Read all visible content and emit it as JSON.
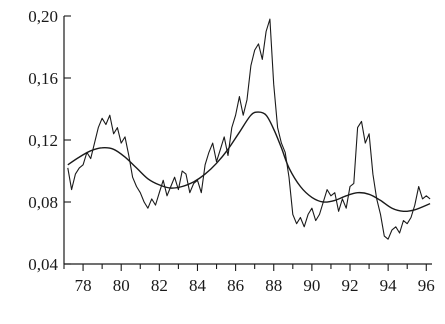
{
  "chart_data": {
    "type": "line",
    "title": "",
    "xlabel": "",
    "ylabel": "",
    "xlim": [
      1977.0,
      1996.3
    ],
    "ylim": [
      0.04,
      0.2
    ],
    "x_ticks": [
      78,
      80,
      82,
      84,
      86,
      88,
      90,
      92,
      94,
      96
    ],
    "x_tick_labels": [
      "78",
      "80",
      "82",
      "84",
      "86",
      "88",
      "90",
      "92",
      "94",
      "96"
    ],
    "y_ticks": [
      0.04,
      0.08,
      0.12,
      0.16,
      0.2
    ],
    "y_tick_labels": [
      "0,04",
      "0,08",
      "0,12",
      "0,16",
      "0,20"
    ],
    "grid": false,
    "legend": "none",
    "series": [
      {
        "style": "raw",
        "x": [
          1977.2,
          1977.4,
          1977.6,
          1977.8,
          1978.0,
          1978.2,
          1978.4,
          1978.6,
          1978.8,
          1979.0,
          1979.2,
          1979.4,
          1979.6,
          1979.8,
          1980.0,
          1980.2,
          1980.4,
          1980.6,
          1980.8,
          1981.0,
          1981.2,
          1981.4,
          1981.6,
          1981.8,
          1982.0,
          1982.2,
          1982.4,
          1982.6,
          1982.8,
          1983.0,
          1983.2,
          1983.4,
          1983.6,
          1983.8,
          1984.0,
          1984.2,
          1984.4,
          1984.6,
          1984.8,
          1985.0,
          1985.2,
          1985.4,
          1985.6,
          1985.8,
          1986.0,
          1986.2,
          1986.4,
          1986.6,
          1986.8,
          1987.0,
          1987.2,
          1987.4,
          1987.6,
          1987.8,
          1988.0,
          1988.2,
          1988.4,
          1988.6,
          1988.8,
          1989.0,
          1989.2,
          1989.4,
          1989.6,
          1989.8,
          1990.0,
          1990.2,
          1990.4,
          1990.6,
          1990.8,
          1991.0,
          1991.2,
          1991.4,
          1991.6,
          1991.8,
          1992.0,
          1992.2,
          1992.4,
          1992.6,
          1992.8,
          1993.0,
          1993.2,
          1993.4,
          1993.6,
          1993.8,
          1994.0,
          1994.2,
          1994.4,
          1994.6,
          1994.8,
          1995.0,
          1995.2,
          1995.4,
          1995.6,
          1995.8,
          1996.0,
          1996.2
        ],
        "y": [
          0.102,
          0.088,
          0.098,
          0.102,
          0.104,
          0.112,
          0.108,
          0.118,
          0.128,
          0.134,
          0.13,
          0.136,
          0.124,
          0.128,
          0.118,
          0.122,
          0.11,
          0.096,
          0.09,
          0.086,
          0.08,
          0.076,
          0.082,
          0.078,
          0.086,
          0.094,
          0.084,
          0.09,
          0.096,
          0.088,
          0.1,
          0.098,
          0.086,
          0.092,
          0.094,
          0.086,
          0.104,
          0.112,
          0.118,
          0.106,
          0.114,
          0.122,
          0.11,
          0.128,
          0.136,
          0.148,
          0.136,
          0.146,
          0.168,
          0.178,
          0.182,
          0.172,
          0.19,
          0.198,
          0.156,
          0.128,
          0.118,
          0.112,
          0.096,
          0.072,
          0.066,
          0.07,
          0.064,
          0.072,
          0.076,
          0.068,
          0.072,
          0.08,
          0.088,
          0.084,
          0.086,
          0.074,
          0.082,
          0.076,
          0.09,
          0.092,
          0.128,
          0.132,
          0.118,
          0.124,
          0.098,
          0.082,
          0.072,
          0.058,
          0.056,
          0.062,
          0.064,
          0.06,
          0.068,
          0.066,
          0.07,
          0.078,
          0.09,
          0.082,
          0.084,
          0.082
        ]
      },
      {
        "style": "smooth",
        "x": [
          1977.2,
          1977.8,
          1978.4,
          1979.0,
          1979.6,
          1980.2,
          1980.8,
          1981.4,
          1982.0,
          1982.6,
          1983.2,
          1983.8,
          1984.4,
          1985.0,
          1985.6,
          1986.2,
          1986.8,
          1987.2,
          1987.6,
          1988.0,
          1988.4,
          1988.8,
          1989.4,
          1990.0,
          1990.6,
          1991.2,
          1991.8,
          1992.4,
          1993.0,
          1993.6,
          1994.2,
          1994.8,
          1995.4,
          1996.2
        ],
        "y": [
          0.104,
          0.109,
          0.113,
          0.115,
          0.114,
          0.109,
          0.102,
          0.095,
          0.091,
          0.089,
          0.09,
          0.093,
          0.098,
          0.105,
          0.114,
          0.125,
          0.136,
          0.138,
          0.136,
          0.127,
          0.115,
          0.102,
          0.09,
          0.083,
          0.08,
          0.081,
          0.084,
          0.086,
          0.085,
          0.081,
          0.076,
          0.074,
          0.075,
          0.079
        ]
      }
    ]
  }
}
